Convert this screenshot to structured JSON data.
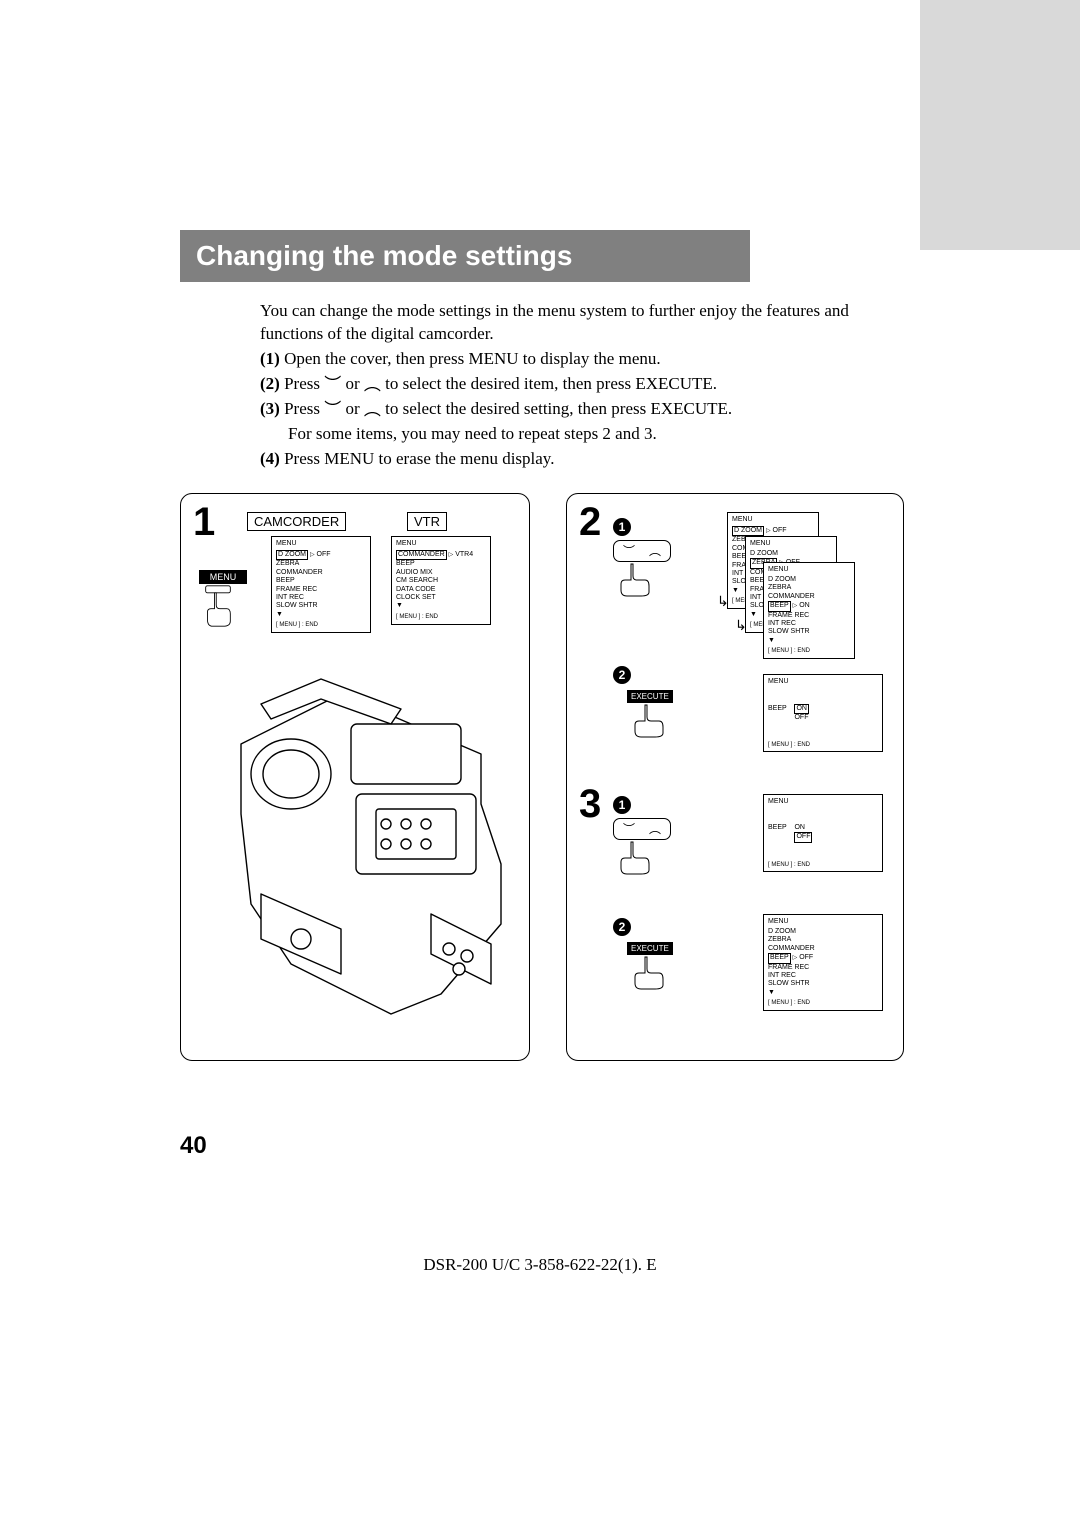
{
  "sidebar_color": "#d9d9d9",
  "title_bar": {
    "text": "Changing the mode settings",
    "bg": "#808080",
    "fg": "#ffffff"
  },
  "intro": {
    "lead": "You can change the mode settings in the menu system to further enjoy the features and functions of the digital camcorder.",
    "steps": [
      {
        "n": "(1)",
        "text": "Open the cover, then press MENU to display the menu."
      },
      {
        "n": "(2)",
        "text_a": "Press ",
        "text_b": " or ",
        "text_c": " to select the desired item, then press EXECUTE."
      },
      {
        "n": "(3)",
        "text_a": "Press ",
        "text_b": " or ",
        "text_c": " to select the desired setting, then press EXECUTE.",
        "extra": "For some items, you may need to repeat steps 2 and 3."
      },
      {
        "n": "(4)",
        "text": "Press MENU to erase the menu display."
      }
    ]
  },
  "panel1": {
    "big": "1",
    "mode_camcorder": "CAMCORDER",
    "mode_vtr": "VTR",
    "menu_btn": "MENU",
    "screen_cam": {
      "hdr": "MENU",
      "items": [
        "D ZOOM",
        "ZEBRA",
        "COMMANDER",
        "BEEP",
        "FRAME REC",
        "INT REC",
        "SLOW SHTR"
      ],
      "sel_idx": 0,
      "value": "OFF",
      "footer": "[ MENU ] : END"
    },
    "screen_vtr": {
      "hdr": "MENU",
      "items": [
        "COMMANDER",
        "BEEP",
        "AUDIO MIX",
        "CM SEARCH",
        "DATA CODE",
        "CLOCK SET"
      ],
      "sel_idx": 0,
      "value": "VTR4",
      "footer": "[ MENU ] : END"
    }
  },
  "panel2": {
    "big2": "2",
    "big3": "3",
    "exec_label": "EXECUTE",
    "cascade_a": {
      "s1": {
        "hdr": "MENU",
        "items": [
          "D ZOOM",
          "ZEBRA",
          "COMMANDER",
          "BEEP",
          "FRAME REC",
          "INT REC",
          "SLOW SHTR"
        ],
        "sel_idx": 0,
        "value": "OFF",
        "footer": "[ MENU ] : END"
      },
      "s2": {
        "hdr": "MENU",
        "items": [
          "D ZOOM",
          "ZEBRA",
          "COMMANDER",
          "BEEP",
          "FRAME REC",
          "INT REC",
          "SLOW SHTR"
        ],
        "sel_idx": 1,
        "value": "OFF",
        "footer": "[ MENU ] : END"
      },
      "s3": {
        "hdr": "MENU",
        "items": [
          "D ZOOM",
          "ZEBRA",
          "COMMANDER",
          "BEEP",
          "FRAME REC",
          "INT REC",
          "SLOW SHTR"
        ],
        "sel_idx": 3,
        "value": "ON",
        "footer": "[ MENU ] : END"
      }
    },
    "screen_2b": {
      "hdr": "MENU",
      "single_item": "BEEP",
      "options": [
        "ON",
        "OFF"
      ],
      "sel_opt": 0,
      "footer": "[ MENU ] : END"
    },
    "screen_3a": {
      "hdr": "MENU",
      "single_item": "BEEP",
      "options": [
        "ON",
        "OFF"
      ],
      "sel_opt": 1,
      "footer": "[ MENU ] : END"
    },
    "screen_3b": {
      "hdr": "MENU",
      "items": [
        "D ZOOM",
        "ZEBRA",
        "COMMANDER",
        "BEEP",
        "FRAME REC",
        "INT REC",
        "SLOW SHTR"
      ],
      "sel_idx": 3,
      "value": "OFF",
      "footer": "[ MENU ] : END"
    }
  },
  "page_number": "40",
  "footer": "DSR-200 U/C 3-858-622-22(1). E"
}
